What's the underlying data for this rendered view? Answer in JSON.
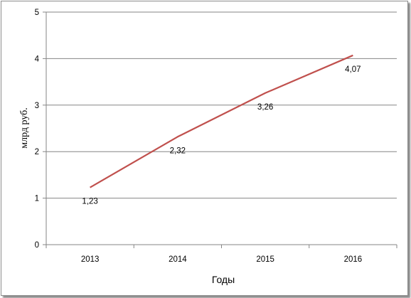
{
  "chart_data": {
    "type": "line",
    "categories": [
      "2013",
      "2014",
      "2015",
      "2016"
    ],
    "series": [
      {
        "values": [
          1.23,
          2.32,
          3.26,
          4.07
        ],
        "labels": [
          "1,23",
          "2,32",
          "3,26",
          "4,07"
        ],
        "color": "#c0504d"
      }
    ],
    "xlabel": "Годы",
    "ylabel": "млрд руб.",
    "ylim": [
      0,
      5
    ],
    "yticks": [
      "0",
      "1",
      "2",
      "3",
      "4",
      "5"
    ],
    "grid": true,
    "gridline_color": "#868686",
    "axis_color": "#868686"
  }
}
